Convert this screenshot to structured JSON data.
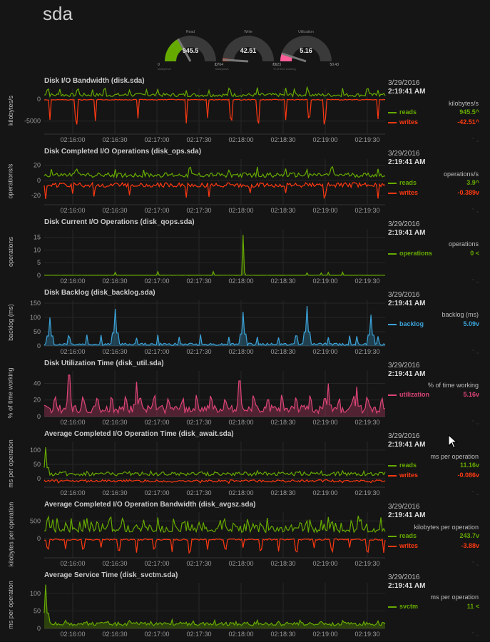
{
  "page": {
    "title": "sda"
  },
  "gauges": [
    {
      "title": "Read",
      "value": "945.5",
      "min": "0",
      "max": "2,764",
      "units": "kilobytes/s",
      "color": "#66aa00",
      "fraction": 0.34
    },
    {
      "title": "Write",
      "value": "42.51",
      "min": "0",
      "max": "7,623",
      "units": "kilobytes/s",
      "color": "#fe3912",
      "fraction": 0.02
    },
    {
      "title": "Utilization",
      "value": "5.16",
      "min": "0",
      "max": "50.43",
      "units": "% of time working",
      "color": "#ff5e99",
      "fraction": 0.1
    }
  ],
  "x_ticks": [
    "02:16:00",
    "02:16:30",
    "02:17:00",
    "02:17:30",
    "02:18:00",
    "02:18:30",
    "02:19:00",
    "02:19:30"
  ],
  "charts": [
    {
      "title": "Disk I/O Bandwidth (disk.sda)",
      "ylabel": "kilobytes/s",
      "y_ticks": [
        "0",
        "-5000"
      ],
      "y_range": [
        -8000,
        2500
      ],
      "date": "3/29/2016",
      "time": "2:19:41 AM",
      "units": "kilobytes/s",
      "dims": [
        {
          "name": "reads",
          "value": "945.5^",
          "color": "#66aa00",
          "kind": "pos",
          "base": 600,
          "amp": 800,
          "spikes": [
            5,
            22,
            47,
            68,
            85,
            120,
            144,
            160,
            200,
            232,
            261,
            300,
            340,
            352,
            371,
            420,
            455,
            470
          ],
          "spike_amp": 2200
        },
        {
          "name": "writes",
          "value": "-42.51^",
          "color": "#fe3912",
          "kind": "neg",
          "base": 0,
          "amp": 200,
          "spikes": [
            8,
            45,
            72,
            132,
            200,
            230,
            263,
            301,
            340,
            373,
            395,
            470
          ],
          "spike_amp": -6000
        }
      ]
    },
    {
      "title": "Disk Completed I/O Operations (disk_ops.sda)",
      "ylabel": "operations/s",
      "y_ticks": [
        "20",
        "0",
        "-20"
      ],
      "y_range": [
        -32,
        28
      ],
      "date": "3/29/2016",
      "time": "2:19:41 AM",
      "units": "operations/s",
      "dims": [
        {
          "name": "reads",
          "value": "3.9^",
          "color": "#66aa00",
          "kind": "pos",
          "base": 4,
          "amp": 6,
          "spikes": [
            10,
            45,
            100,
            140,
            205,
            260,
            300,
            340,
            370,
            405,
            470
          ],
          "spike_amp": 14
        },
        {
          "name": "writes",
          "value": "-0.389v",
          "color": "#fe3912",
          "kind": "neg",
          "base": -3,
          "amp": 6,
          "spikes": [
            2,
            40,
            70,
            120,
            200,
            232,
            290,
            340,
            395,
            470
          ],
          "spike_amp": -22
        }
      ]
    },
    {
      "title": "Disk Current I/O Operations (disk_qops.sda)",
      "ylabel": "operations",
      "y_ticks": [
        "15",
        "10",
        "5",
        "0"
      ],
      "y_range": [
        0,
        18
      ],
      "date": "3/29/2016",
      "time": "2:19:41 AM",
      "units": "operations",
      "dims": [
        {
          "name": "operations",
          "value": "0 <",
          "color": "#66aa00",
          "kind": "flat",
          "base": 0,
          "amp": 0.3,
          "spikes": [
            100,
            160,
            238,
            282,
            370,
            390,
            400,
            420
          ],
          "spike_amp": 1.5,
          "big": [
            [
              280,
              16
            ]
          ]
        }
      ]
    },
    {
      "title": "Disk Backlog (disk_backlog.sda)",
      "ylabel": "backlog (ms)",
      "y_ticks": [
        "150",
        "100",
        "50",
        "0"
      ],
      "y_range": [
        0,
        160
      ],
      "date": "3/29/2016",
      "time": "2:19:41 AM",
      "units": "backlog (ms)",
      "dims": [
        {
          "name": "backlog",
          "value": "5.09v",
          "color": "#3ba3d8",
          "kind": "spiky",
          "base": 2,
          "amp": 8,
          "spikes": [
            8,
            35,
            60,
            80,
            100,
            130,
            160,
            190,
            220,
            260,
            300,
            330,
            355,
            370,
            400,
            430,
            440,
            470
          ],
          "spike_amp": 40,
          "big": [
            [
              8,
              100
            ],
            [
              100,
              130
            ],
            [
              280,
              120
            ],
            [
              370,
              140
            ],
            [
              460,
              110
            ]
          ]
        }
      ]
    },
    {
      "title": "Disk Utilization Time (disk_util.sda)",
      "ylabel": "% of time working",
      "y_ticks": [
        "40",
        "20",
        "0"
      ],
      "y_range": [
        0,
        55
      ],
      "date": "3/29/2016",
      "time": "2:19:41 AM",
      "units": "% of time working",
      "dims": [
        {
          "name": "utilization",
          "value": "5.16v",
          "color": "#dd4477",
          "kind": "spiky",
          "base": 4,
          "amp": 10,
          "spikes": [
            15,
            35,
            55,
            75,
            95,
            115,
            135,
            155,
            175,
            195,
            215,
            235,
            255,
            275,
            295,
            315,
            335,
            355,
            375,
            395,
            415,
            435,
            455,
            475
          ],
          "spike_amp": 22,
          "big": [
            [
              35,
              50
            ],
            [
              130,
              42
            ],
            [
              275,
              43
            ],
            [
              400,
              40
            ],
            [
              440,
              36
            ]
          ]
        }
      ]
    },
    {
      "title": "Average Completed I/O Operation Time (disk_await.sda)",
      "ylabel": "ms per operation",
      "y_ticks": [
        "100",
        "50",
        "0"
      ],
      "y_range": [
        -30,
        130
      ],
      "date": "3/29/2016",
      "time": "2:19:41 AM",
      "units": "ms per operation",
      "dims": [
        {
          "name": "reads",
          "value": "11.16v",
          "color": "#66aa00",
          "kind": "pos",
          "base": 10,
          "amp": 14,
          "spikes": [
            2,
            30,
            60,
            90,
            120,
            150,
            180,
            210,
            240,
            270,
            300,
            330,
            360,
            390,
            420,
            450,
            475
          ],
          "spike_amp": 18,
          "big": [
            [
              2,
              110
            ]
          ]
        },
        {
          "name": "writes",
          "value": "-0.086v",
          "color": "#fe3912",
          "kind": "neg",
          "base": -4,
          "amp": 8,
          "spikes": [
            20,
            60,
            100,
            140,
            180,
            220,
            260,
            300,
            340,
            380,
            420,
            460
          ],
          "spike_amp": -12
        }
      ]
    },
    {
      "title": "Average Completed I/O Operation Bandwidth (disk_avgsz.sda)",
      "ylabel": "kilobytes per operation",
      "y_ticks": [
        "500",
        "0"
      ],
      "y_range": [
        -550,
        750
      ],
      "date": "3/29/2016",
      "time": "2:19:41 AM",
      "units": "kilobytes per operation",
      "dims": [
        {
          "name": "reads",
          "value": "243.7v",
          "color": "#66aa00",
          "kind": "dense",
          "base": 200,
          "amp": 360,
          "spikes": [],
          "spike_amp": 0
        },
        {
          "name": "writes",
          "value": "-3.88v",
          "color": "#fe3912",
          "kind": "neg",
          "base": -10,
          "amp": 40,
          "spikes": [
            5,
            30,
            55,
            80,
            105,
            130,
            155,
            180,
            205,
            230,
            255,
            280,
            305,
            330,
            355,
            380,
            405,
            430,
            455,
            478
          ],
          "spike_amp": -400
        }
      ]
    },
    {
      "title": "Average Service Time (disk_svctm.sda)",
      "ylabel": "ms per operation",
      "y_ticks": [
        "100",
        "50",
        "0"
      ],
      "y_range": [
        0,
        130
      ],
      "date": "3/29/2016",
      "time": "2:19:41 AM",
      "units": "ms per operation",
      "dims": [
        {
          "name": "svctm",
          "value": "11 <",
          "color": "#66aa00",
          "kind": "spiky",
          "base": 8,
          "amp": 10,
          "spikes": [
            30,
            60,
            90,
            120,
            150,
            180,
            210,
            240,
            270,
            300,
            330,
            360,
            390,
            420,
            450,
            470
          ],
          "spike_amp": 18,
          "big": [
            [
              2,
              125
            ]
          ]
        }
      ]
    }
  ]
}
